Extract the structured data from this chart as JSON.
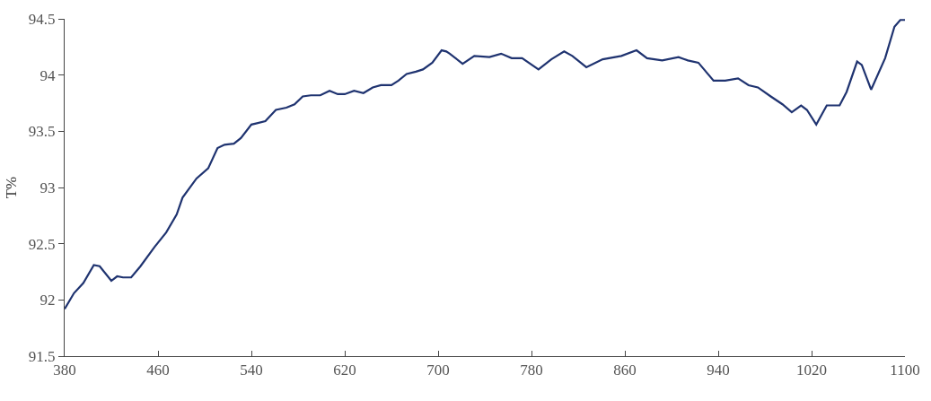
{
  "chart_data": {
    "type": "line",
    "ylabel": "T%",
    "x": [
      380,
      388,
      396,
      405,
      410,
      420,
      425,
      430,
      437,
      445,
      457,
      467,
      476,
      481,
      493,
      503,
      511,
      517,
      525,
      531,
      540,
      544,
      552,
      561,
      570,
      577,
      584,
      591,
      599,
      607,
      614,
      620,
      628,
      636,
      644,
      651,
      660,
      666,
      673,
      681,
      687,
      695,
      703,
      707,
      710,
      721,
      731,
      744,
      754,
      763,
      772,
      786,
      797,
      808,
      815,
      827,
      841,
      857,
      870,
      879,
      892,
      906,
      914,
      923,
      936,
      946,
      957,
      966,
      974,
      985,
      995,
      1003,
      1011,
      1016,
      1024,
      1033,
      1044,
      1050,
      1059,
      1063,
      1071,
      1083,
      1091,
      1096,
      1100
    ],
    "series": [
      {
        "color": "#1f3370",
        "values": [
          91.92,
          92.06,
          92.15,
          92.31,
          92.3,
          92.17,
          92.21,
          92.2,
          92.2,
          92.3,
          92.47,
          92.6,
          92.76,
          92.91,
          93.08,
          93.17,
          93.35,
          93.38,
          93.39,
          93.44,
          93.56,
          93.57,
          93.59,
          93.69,
          93.71,
          93.74,
          93.81,
          93.82,
          93.82,
          93.86,
          93.83,
          93.83,
          93.86,
          93.84,
          93.89,
          93.91,
          93.91,
          93.95,
          94.01,
          94.03,
          94.05,
          94.11,
          94.22,
          94.21,
          94.19,
          94.1,
          94.17,
          94.16,
          94.19,
          94.15,
          94.15,
          94.05,
          94.14,
          94.21,
          94.17,
          94.07,
          94.14,
          94.17,
          94.22,
          94.15,
          94.13,
          94.16,
          94.13,
          94.11,
          93.95,
          93.95,
          93.97,
          93.91,
          93.89,
          93.81,
          93.74,
          93.67,
          93.73,
          93.69,
          93.56,
          93.73,
          93.73,
          93.85,
          94.12,
          94.09,
          93.87,
          94.15,
          94.43,
          94.49,
          94.49
        ]
      }
    ],
    "xlim": [
      380,
      1100
    ],
    "xticks": [
      380,
      460,
      540,
      620,
      700,
      780,
      860,
      940,
      1020,
      1100
    ],
    "ylim": [
      91.5,
      94.5
    ],
    "yticks": [
      91.5,
      92,
      92.5,
      93,
      93.5,
      94,
      94.5
    ],
    "marker": "none",
    "line_style": "solid"
  }
}
